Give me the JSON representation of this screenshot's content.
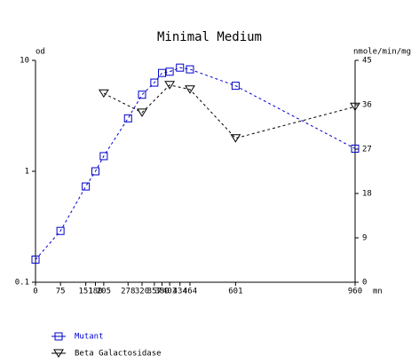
{
  "chart_data": {
    "type": "line",
    "title": "Minimal Medium",
    "xlabel": "mn",
    "ylabel": "od",
    "y2label": "nmole/min/mg",
    "xlim": [
      0,
      960
    ],
    "xticks": [
      0,
      75,
      151,
      180,
      205,
      278,
      320,
      357,
      380,
      403,
      434,
      464,
      601,
      960
    ],
    "ylim": [
      0.1,
      10
    ],
    "yticks": [
      0.1,
      1,
      10
    ],
    "yscale": "log",
    "y2lim": [
      0,
      45
    ],
    "y2ticks": [
      0,
      9,
      18,
      27,
      36,
      45
    ],
    "series": [
      {
        "name": "Mutant",
        "color": "#0000cc",
        "marker": "square",
        "x": [
          0,
          75,
          151,
          180,
          205,
          278,
          320,
          357,
          380,
          403,
          434,
          464,
          601,
          960
        ],
        "values": [
          0.16,
          0.29,
          0.73,
          1.0,
          1.37,
          3.0,
          4.9,
          6.3,
          7.7,
          7.9,
          8.6,
          8.3,
          5.9,
          1.6
        ]
      },
      {
        "name": "Beta Galactosidase",
        "color": "#000000",
        "marker": "triangle-down",
        "axis": "y2",
        "x": [
          205,
          320,
          403,
          464,
          601,
          960
        ],
        "values": [
          38.3,
          34.4,
          40,
          39.1,
          29.2,
          35.6
        ]
      }
    ]
  }
}
